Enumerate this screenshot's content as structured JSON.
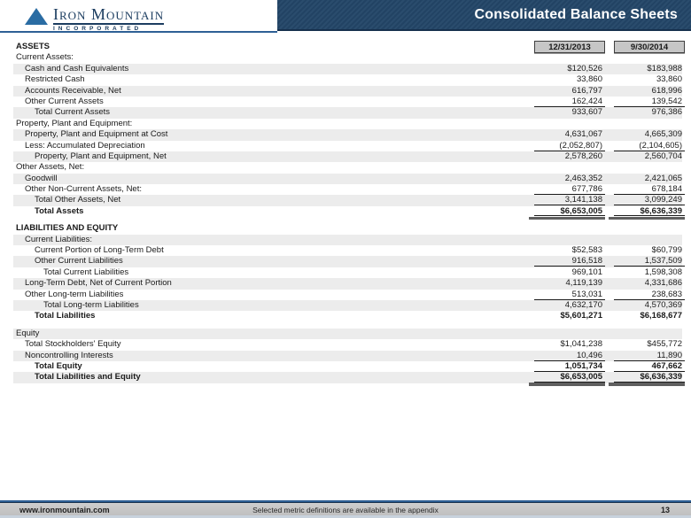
{
  "logo": {
    "name": "Iron Mountain",
    "subtitle": "INCORPORATED"
  },
  "header": {
    "title": "Consolidated Balance Sheets"
  },
  "columns": [
    "12/31/2013",
    "9/30/2014"
  ],
  "colors": {
    "banner": "#234668",
    "accent_line": "#2e6095",
    "row_band": "#ececec",
    "column_header_fill": "#c6c6c6",
    "grand_total_bar": "#5f5f5f",
    "footer_bar": "#c3c3c3",
    "logo_blue": "#2a6ca3"
  },
  "table": {
    "rows": [
      {
        "label": "ASSETS",
        "indent": 0,
        "bold": true
      },
      {
        "label": "Current Assets:",
        "indent": 0
      },
      {
        "label": "Cash and Cash Equivalents",
        "indent": 1,
        "shaded": true,
        "v1": "$120,526",
        "v2": "$183,988"
      },
      {
        "label": "Restricted Cash",
        "indent": 1,
        "v1": "33,860",
        "v2": "33,860"
      },
      {
        "label": "Accounts Receivable, Net",
        "indent": 1,
        "shaded": true,
        "v1": "616,797",
        "v2": "618,996"
      },
      {
        "label": "Other Current Assets",
        "indent": 1,
        "v1": "162,424",
        "v2": "139,542",
        "underline": true
      },
      {
        "label": "Total Current Assets",
        "indent": 2,
        "shaded": true,
        "v1": "933,607",
        "v2": "976,386"
      },
      {
        "label": "Property, Plant and Equipment:",
        "indent": 0
      },
      {
        "label": "Property, Plant and Equipment at Cost",
        "indent": 1,
        "shaded": true,
        "v1": "4,631,067",
        "v2": "4,665,309"
      },
      {
        "label": "Less: Accumulated Depreciation",
        "indent": 1,
        "v1": "(2,052,807)",
        "v2": "(2,104,605)",
        "underline": true
      },
      {
        "label": "Property, Plant and Equipment, Net",
        "indent": 2,
        "shaded": true,
        "v1": "2,578,260",
        "v2": "2,560,704"
      },
      {
        "label": "Other Assets, Net:",
        "indent": 0
      },
      {
        "label": "Goodwill",
        "indent": 1,
        "shaded": true,
        "v1": "2,463,352",
        "v2": "2,421,065"
      },
      {
        "label": "Other Non-Current Assets, Net:",
        "indent": 1,
        "v1": "677,786",
        "v2": "678,184",
        "underline": true
      },
      {
        "label": "Total Other Assets, Net",
        "indent": 2,
        "shaded": true,
        "v1": "3,141,138",
        "v2": "3,099,249",
        "underline": true
      },
      {
        "label": "Total Assets",
        "indent": 2,
        "bold": true,
        "v1": "$6,653,005",
        "v2": "$6,636,339",
        "grand": true
      },
      {
        "label": "LIABILITIES AND EQUITY",
        "indent": 0,
        "bold": true,
        "gap": true
      },
      {
        "label": "Current Liabilities:",
        "indent": 1,
        "shaded": true
      },
      {
        "label": "Current Portion of Long-Term Debt",
        "indent": 2,
        "v1": "$52,583",
        "v2": "$60,799"
      },
      {
        "label": "Other Current Liabilities",
        "indent": 2,
        "shaded": true,
        "v1": "916,518",
        "v2": "1,537,509",
        "underline": true
      },
      {
        "label": "Total Current Liabilities",
        "indent": 3,
        "v1": "969,101",
        "v2": "1,598,308"
      },
      {
        "label": "Long-Term Debt, Net of Current Portion",
        "indent": 1,
        "shaded": true,
        "v1": "4,119,139",
        "v2": "4,331,686"
      },
      {
        "label": "Other Long-term Liabilities",
        "indent": 1,
        "v1": "513,031",
        "v2": "238,683",
        "underline": true
      },
      {
        "label": "Total Long-term Liabilities",
        "indent": 3,
        "shaded": true,
        "v1": "4,632,170",
        "v2": "4,570,369"
      },
      {
        "label": "Total Liabilities",
        "indent": 2,
        "bold": true,
        "v1": "$5,601,271",
        "v2": "$6,168,677"
      },
      {
        "label": "Equity",
        "indent": 0,
        "shaded": true,
        "gap": true
      },
      {
        "label": "Total Stockholders' Equity",
        "indent": 1,
        "v1": "$1,041,238",
        "v2": "$455,772"
      },
      {
        "label": "Noncontrolling Interests",
        "indent": 1,
        "shaded": true,
        "v1": "10,496",
        "v2": "11,890",
        "underline": true
      },
      {
        "label": "Total Equity",
        "indent": 2,
        "bold": true,
        "v1": "1,051,734",
        "v2": "467,662",
        "underline": true
      },
      {
        "label": "Total Liabilities and Equity",
        "indent": 2,
        "bold": true,
        "shaded": true,
        "v1": "$6,653,005",
        "v2": "$6,636,339",
        "grand": true
      }
    ]
  },
  "footer": {
    "url": "www.ironmountain.com",
    "note": "Selected metric definitions are available in the appendix",
    "page": "13"
  }
}
